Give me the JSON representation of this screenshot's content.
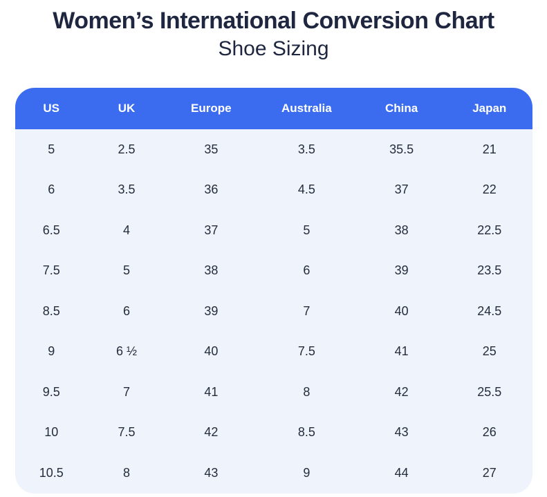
{
  "header": {
    "title": "Women’s International Conversion Chart",
    "subtitle": "Shoe Sizing"
  },
  "chart_data": {
    "type": "table",
    "title": "Women’s International Conversion Chart",
    "subtitle": "Shoe Sizing",
    "columns": [
      "US",
      "UK",
      "Europe",
      "Australia",
      "China",
      "Japan"
    ],
    "rows": [
      [
        "5",
        "2.5",
        "35",
        "3.5",
        "35.5",
        "21"
      ],
      [
        "6",
        "3.5",
        "36",
        "4.5",
        "37",
        "22"
      ],
      [
        "6.5",
        "4",
        "37",
        "5",
        "38",
        "22.5"
      ],
      [
        "7.5",
        "5",
        "38",
        "6",
        "39",
        "23.5"
      ],
      [
        "8.5",
        "6",
        "39",
        "7",
        "40",
        "24.5"
      ],
      [
        "9",
        "6 ½",
        "40",
        "7.5",
        "41",
        "25"
      ],
      [
        "9.5",
        "7",
        "41",
        "8",
        "42",
        "25.5"
      ],
      [
        "10",
        "7.5",
        "42",
        "8.5",
        "43",
        "26"
      ],
      [
        "10.5",
        "8",
        "43",
        "9",
        "44",
        "27"
      ]
    ],
    "legend": null,
    "grid": false
  },
  "colors": {
    "header_bg": "#3b6cf0",
    "body_bg": "#eff3fb",
    "header_text": "#ffffff",
    "title_text": "#1e2640",
    "cell_text": "#242c3c",
    "page_bg": "#ffffff"
  }
}
